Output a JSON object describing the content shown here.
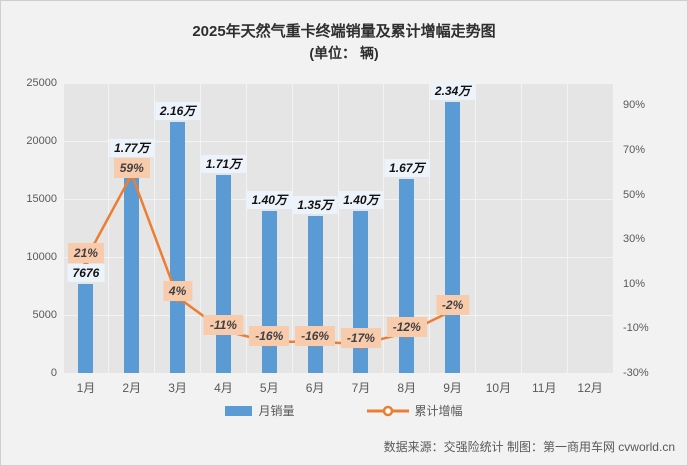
{
  "title": {
    "line1": "2025年天然气重卡终端销量及累计增幅走势图",
    "line2": "(单位： 辆)"
  },
  "chart_data": {
    "type": "combo-bar-line",
    "categories": [
      "1月",
      "2月",
      "3月",
      "4月",
      "5月",
      "6月",
      "7月",
      "8月",
      "9月",
      "10月",
      "11月",
      "12月"
    ],
    "series": [
      {
        "name": "月销量",
        "type": "bar",
        "color": "#5B9BD5",
        "values": [
          7676,
          17700,
          21600,
          17100,
          14000,
          13500,
          14000,
          16700,
          23400,
          null,
          null,
          null
        ],
        "labels": [
          "7676",
          "1.77万",
          "2.16万",
          "1.71万",
          "1.40万",
          "1.35万",
          "1.40万",
          "1.67万",
          "2.34万",
          "",
          "",
          ""
        ]
      },
      {
        "name": "累计增幅",
        "type": "line",
        "color": "#ED7D31",
        "values": [
          21,
          59,
          4,
          -11,
          -16,
          -16,
          -17,
          -12,
          -2,
          null,
          null,
          null
        ],
        "labels": [
          "21%",
          "59%",
          "4%",
          "-11%",
          "-16%",
          "-16%",
          "-17%",
          "-12%",
          "-2%",
          "",
          "",
          ""
        ]
      }
    ],
    "left_axis": {
      "min": 0,
      "max": 25000,
      "ticks": [
        0,
        5000,
        10000,
        15000,
        20000,
        25000
      ],
      "tick_labels": [
        "0",
        "5000",
        "10000",
        "15000",
        "20000",
        "25000"
      ]
    },
    "right_axis": {
      "min": -30,
      "max": 100,
      "ticks": [
        90,
        70,
        50,
        30,
        10,
        -10,
        -30
      ],
      "tick_labels": [
        "90%",
        "70%",
        "50%",
        "30%",
        "10%",
        "-10%",
        "-30%"
      ]
    },
    "grid": true,
    "legend_position": "bottom"
  },
  "legend": {
    "bar_label": "月销量",
    "line_label": "累计增幅"
  },
  "source": "数据来源：交强险统计 制图：第一商用车网 cvworld.cn",
  "colors": {
    "bar": "#5B9BD5",
    "line": "#ED7D31",
    "pct_label_bg": "#F8CBAD",
    "val_label_bg": "#EDF3FA",
    "plot_bg": "#E5E5E5",
    "canvas_bg": "#F2F2F2"
  }
}
